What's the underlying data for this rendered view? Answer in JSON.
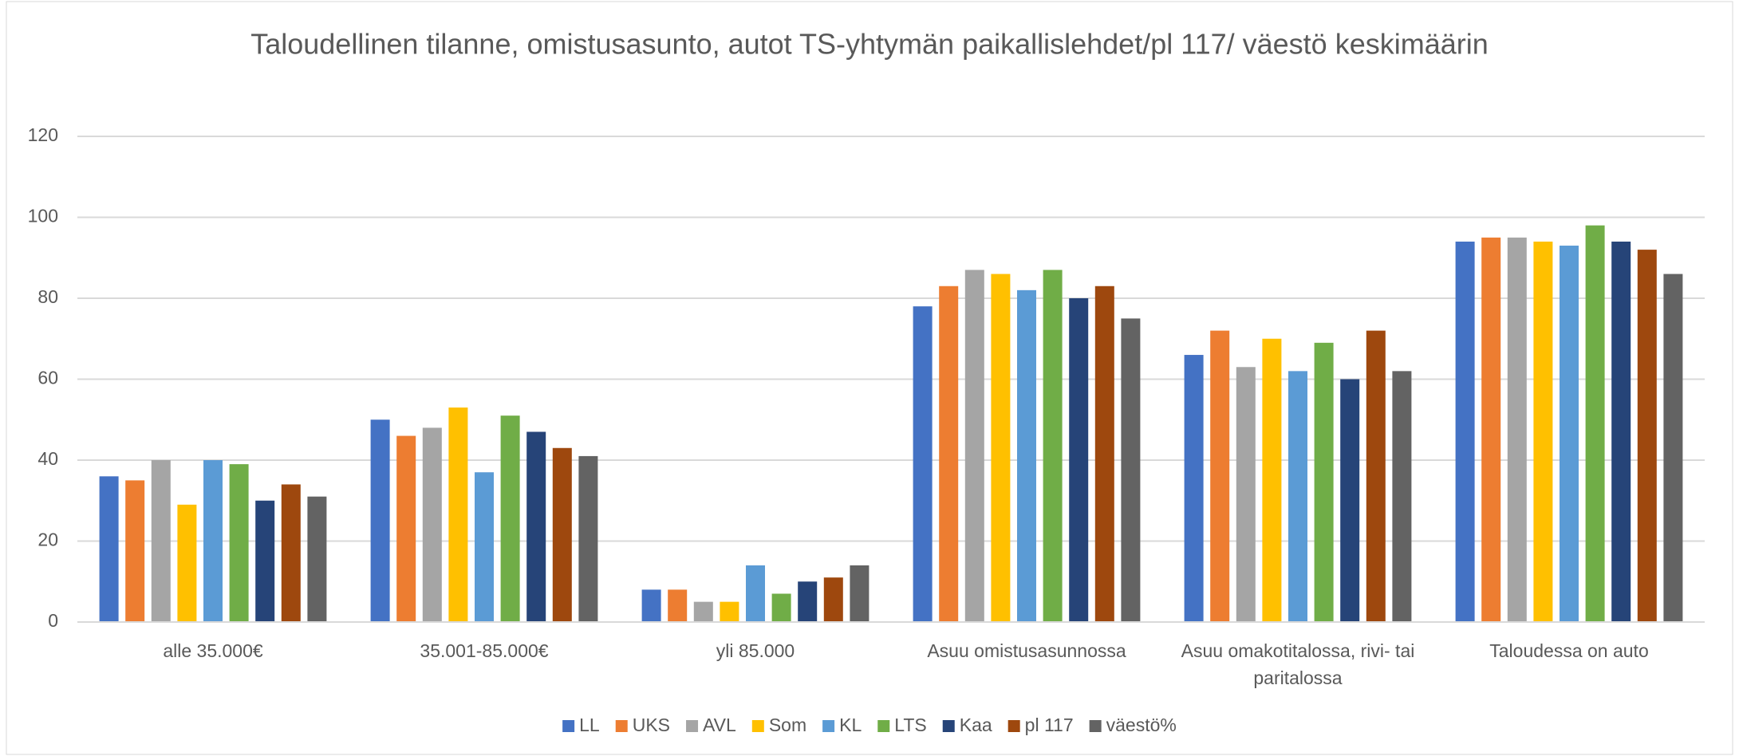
{
  "chart_data": {
    "type": "bar",
    "title": "Taloudellinen tilanne, omistusasunto, autot TS-yhtymän paikallislehdet/pl 117/ väestö keskimäärin",
    "categories": [
      "alle 35.000€",
      "35.001-85.000€",
      "yli 85.000",
      "Asuu omistusasunnossa",
      "Asuu omakotitalossa, rivi- tai paritalossa",
      "Taloudessa on auto"
    ],
    "series": [
      {
        "name": "LL",
        "color": "#4472c4",
        "values": [
          36,
          50,
          8,
          78,
          66,
          94
        ]
      },
      {
        "name": "UKS",
        "color": "#ed7d31",
        "values": [
          35,
          46,
          8,
          83,
          72,
          95
        ]
      },
      {
        "name": "AVL",
        "color": "#a5a5a5",
        "values": [
          40,
          48,
          5,
          87,
          63,
          95
        ]
      },
      {
        "name": "Som",
        "color": "#ffc000",
        "values": [
          29,
          53,
          5,
          86,
          70,
          94
        ]
      },
      {
        "name": "KL",
        "color": "#5b9bd5",
        "values": [
          40,
          37,
          14,
          82,
          62,
          93
        ]
      },
      {
        "name": "LTS",
        "color": "#70ad47",
        "values": [
          39,
          51,
          7,
          87,
          69,
          98
        ]
      },
      {
        "name": "Kaa",
        "color": "#264478",
        "values": [
          30,
          47,
          10,
          80,
          60,
          94
        ]
      },
      {
        "name": "pl 117",
        "color": "#9e480e",
        "values": [
          34,
          43,
          11,
          83,
          72,
          92
        ]
      },
      {
        "name": "väestö%",
        "color": "#636363",
        "values": [
          31,
          41,
          14,
          75,
          62,
          86
        ]
      }
    ],
    "ylim": [
      0,
      120
    ],
    "yticks": [
      0,
      20,
      40,
      60,
      80,
      100,
      120
    ],
    "grid": true,
    "legend": "bottom"
  }
}
